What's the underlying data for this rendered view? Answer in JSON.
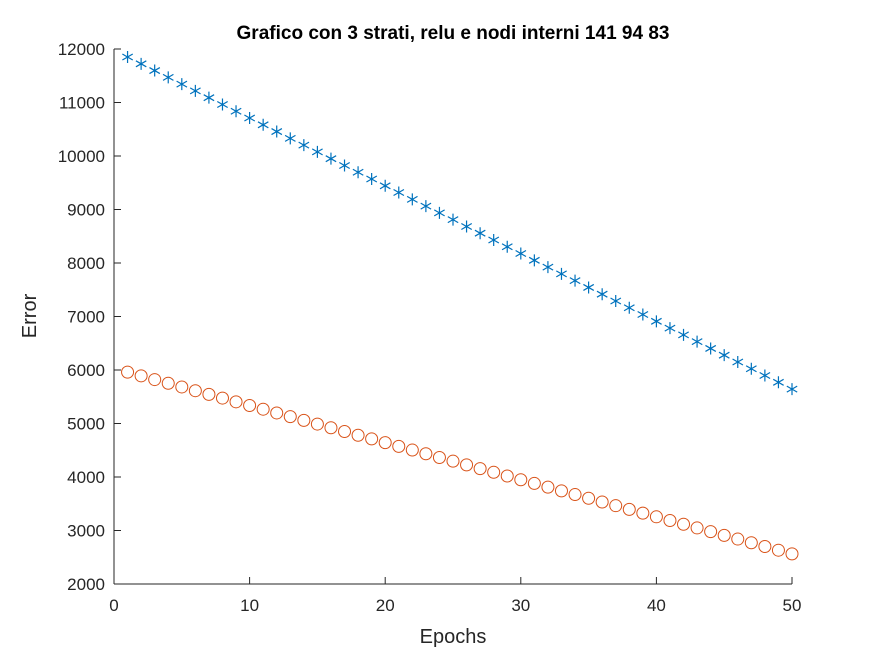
{
  "chart_data": {
    "type": "scatter",
    "title": "Grafico con 3 strati, relu e nodi interni 141   94   83",
    "xlabel": "Epochs",
    "ylabel": "Error",
    "xlim": [
      0,
      50
    ],
    "ylim": [
      2000,
      12000
    ],
    "xticks": [
      0,
      10,
      20,
      30,
      40,
      50
    ],
    "yticks": [
      2000,
      3000,
      4000,
      5000,
      6000,
      7000,
      8000,
      9000,
      10000,
      11000,
      12000
    ],
    "grid": false,
    "legend": "none",
    "x": [
      1,
      2,
      3,
      4,
      5,
      6,
      7,
      8,
      9,
      10,
      11,
      12,
      13,
      14,
      15,
      16,
      17,
      18,
      19,
      20,
      21,
      22,
      23,
      24,
      25,
      26,
      27,
      28,
      29,
      30,
      31,
      32,
      33,
      34,
      35,
      36,
      37,
      38,
      39,
      40,
      41,
      42,
      43,
      44,
      45,
      46,
      47,
      48,
      49,
      50
    ],
    "series": [
      {
        "marker": "asterisk",
        "color": "#0072BD",
        "values": [
          11850,
          11723,
          11597,
          11470,
          11343,
          11217,
          11090,
          10963,
          10837,
          10710,
          10583,
          10457,
          10330,
          10203,
          10077,
          9950,
          9823,
          9697,
          9570,
          9443,
          9317,
          9190,
          9063,
          8937,
          8810,
          8683,
          8557,
          8430,
          8303,
          8177,
          8050,
          7923,
          7797,
          7670,
          7543,
          7417,
          7290,
          7163,
          7037,
          6910,
          6783,
          6657,
          6530,
          6403,
          6277,
          6150,
          6023,
          5897,
          5770,
          5643
        ]
      },
      {
        "marker": "circle",
        "color": "#D95319",
        "values": [
          5960,
          5891,
          5821,
          5752,
          5683,
          5613,
          5544,
          5475,
          5405,
          5336,
          5267,
          5197,
          5128,
          5059,
          4989,
          4920,
          4851,
          4781,
          4712,
          4643,
          4573,
          4504,
          4435,
          4365,
          4296,
          4227,
          4157,
          4088,
          4019,
          3949,
          3880,
          3811,
          3741,
          3672,
          3603,
          3533,
          3464,
          3395,
          3325,
          3256,
          3187,
          3117,
          3048,
          2979,
          2909,
          2840,
          2771,
          2701,
          2632,
          2563
        ]
      }
    ]
  }
}
